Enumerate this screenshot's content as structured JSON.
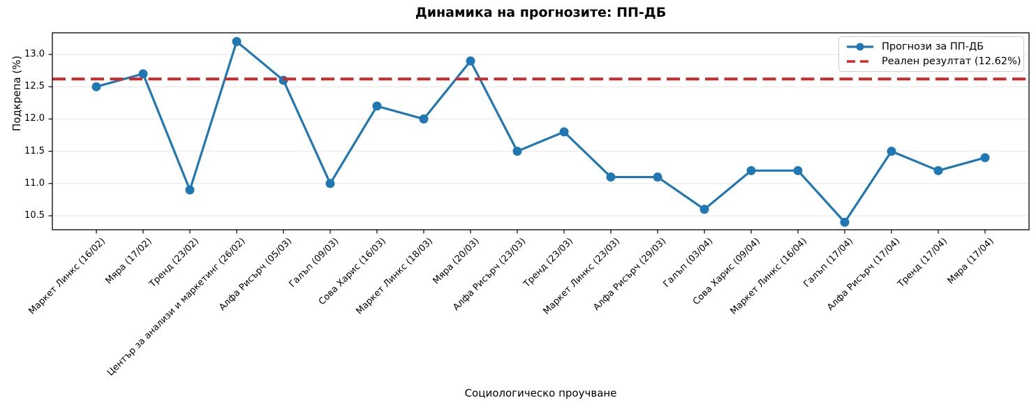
{
  "chart_data": {
    "type": "line",
    "title": "Динамика на прогнозите: ПП-ДБ",
    "xlabel": "Социологическо проучване",
    "ylabel": "Подкрепа (%)",
    "categories": [
      "Маркет Линкс (16/02)",
      "Мяра (17/02)",
      "Тренд (23/02)",
      "Център за анализи и маркетинг (26/02)",
      "Алфа Рисърч (05/03)",
      "Галъп (09/03)",
      "Сова Харис (16/03)",
      "Маркет Линкс (18/03)",
      "Мяра (20/03)",
      "Алфа Рисърч (23/03)",
      "Тренд (23/03)",
      "Маркет Линкс (23/03)",
      "Алфа Рисърч (29/03)",
      "Галъп (03/04)",
      "Сова Харис (09/04)",
      "Маркет Линкс (16/04)",
      "Галъп (17/04)",
      "Алфа Рисърч (17/04)",
      "Тренд (17/04)",
      "Мяра (17/04)"
    ],
    "series": [
      {
        "name": "Прогнози за ПП-ДБ",
        "type": "line",
        "marker": "circle",
        "color": "#1f77b4",
        "values": [
          12.5,
          12.7,
          10.9,
          13.2,
          12.6,
          11.0,
          12.2,
          12.0,
          12.9,
          11.5,
          11.8,
          11.1,
          11.1,
          10.6,
          11.2,
          11.2,
          10.4,
          11.5,
          11.2,
          11.4
        ]
      },
      {
        "name": "Реален резултат (12.62%)",
        "type": "hline",
        "style": "dashed",
        "color": "#d62728",
        "value": 12.62
      }
    ],
    "yticks": [
      10.5,
      11.0,
      11.5,
      12.0,
      12.5,
      13.0
    ],
    "ylim": [
      10.28,
      13.34
    ],
    "grid": "horizontal",
    "legend_position": "upper-right"
  }
}
